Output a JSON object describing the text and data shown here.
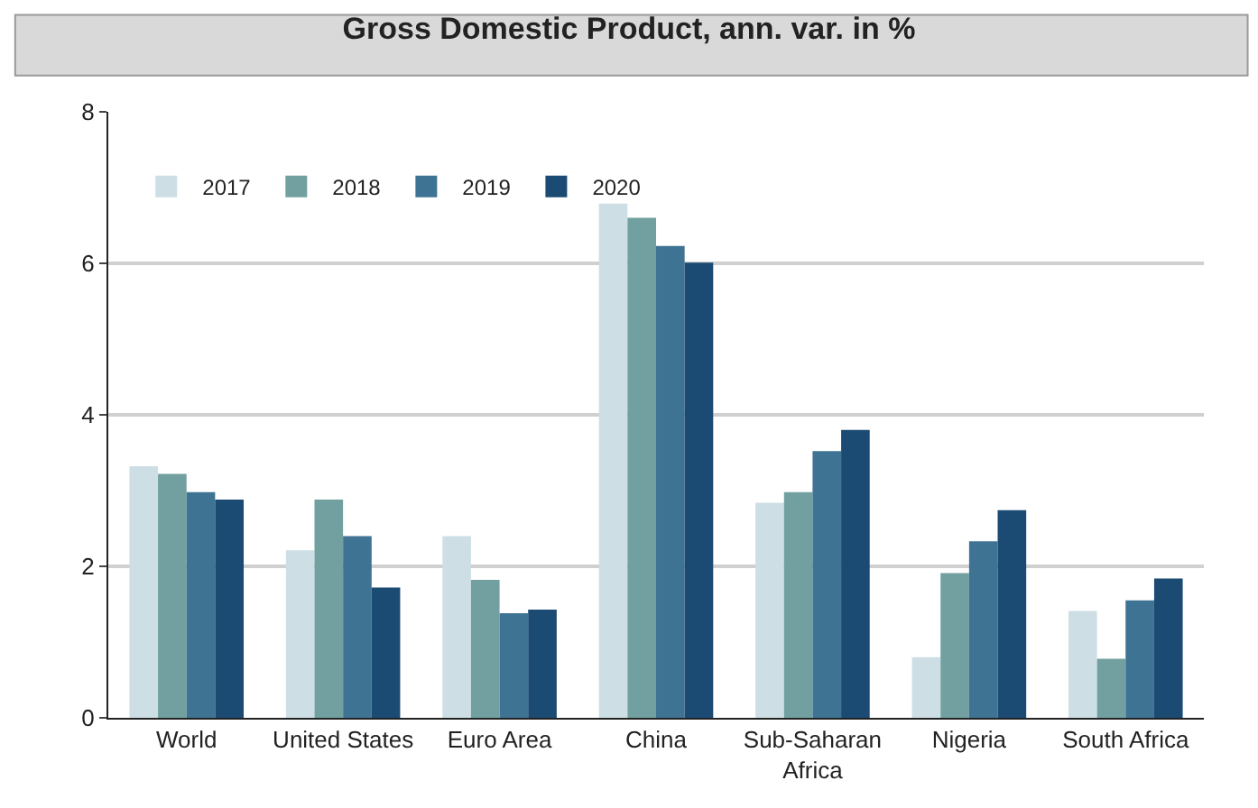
{
  "chart_data": {
    "type": "bar",
    "title": "Gross Domestic Product, ann. var. in %",
    "categories": [
      "World",
      "United States",
      "Euro Area",
      "China",
      "Sub-Saharan Africa",
      "Nigeria",
      "South Africa"
    ],
    "series": [
      {
        "name": "2017",
        "color": "#cddfe5",
        "values": [
          3.32,
          2.21,
          2.4,
          6.79,
          2.84,
          0.8,
          1.41
        ]
      },
      {
        "name": "2018",
        "color": "#72a0a0",
        "values": [
          3.22,
          2.88,
          1.82,
          6.6,
          2.98,
          1.91,
          0.78
        ]
      },
      {
        "name": "2019",
        "color": "#3e7393",
        "values": [
          2.98,
          2.4,
          1.38,
          6.23,
          3.52,
          2.33,
          1.55
        ]
      },
      {
        "name": "2020",
        "color": "#1b4a73",
        "values": [
          2.88,
          1.72,
          1.43,
          6.01,
          3.8,
          2.74,
          1.84
        ]
      }
    ],
    "ylim": [
      0,
      8
    ],
    "yticks": [
      0,
      2,
      4,
      6,
      8
    ],
    "grid": "y",
    "legend": "top left"
  }
}
